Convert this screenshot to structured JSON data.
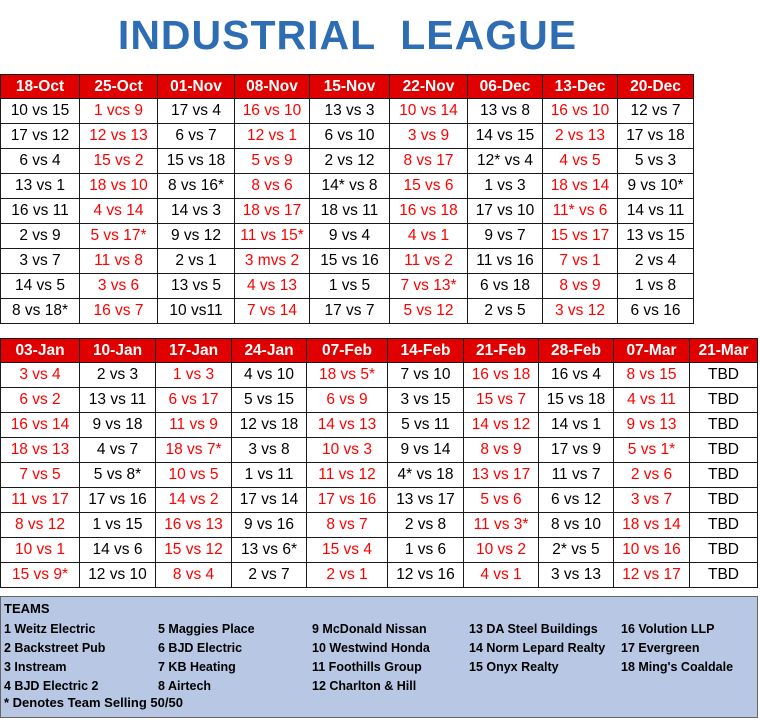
{
  "title": "INDUSTRIAL  LEAGUE",
  "table1": {
    "headers": [
      "18-Oct",
      "25-Oct",
      "01-Nov",
      "08-Nov",
      "15-Nov",
      "22-Nov",
      "06-Dec",
      "13-Dec",
      "20-Dec"
    ],
    "rows": [
      [
        "10 vs 15",
        "1 vcs 9",
        "17 vs 4",
        "16 vs 10",
        "13 vs 3",
        "10 vs 14",
        "13 vs 8",
        "16 vs 10",
        "12 vs 7"
      ],
      [
        "17 vs 12",
        "12 vs 13",
        "6 vs 7",
        "12 vs 1",
        "6 vs 10",
        "3 vs 9",
        "14 vs 15",
        "2 vs 13",
        "17 vs 18"
      ],
      [
        "6 vs 4",
        "15 vs 2",
        "15 vs 18",
        "5 vs 9",
        "2 vs 12",
        "8 vs 17",
        "12* vs 4",
        "4 vs 5",
        "5 vs 3"
      ],
      [
        "13 vs 1",
        "18 vs 10",
        "8 vs 16*",
        "8 vs 6",
        "14* vs 8",
        "15 vs 6",
        "1 vs 3",
        "18 vs 14",
        "9 vs 10*"
      ],
      [
        "16 vs 11",
        "4 vs 14",
        "14 vs 3",
        "18 vs 17",
        "18 vs 11",
        "16 vs 18",
        "17 vs 10",
        "11* vs 6",
        "14 vs 11"
      ],
      [
        "2 vs 9",
        "5 vs 17*",
        "9 vs 12",
        "11 vs 15*",
        "9 vs 4",
        "4 vs 1",
        "9 vs 7",
        "15 vs 17",
        "13 vs 15"
      ],
      [
        "3 vs 7",
        "11 vs 8",
        "2 vs 1",
        "3 mvs 2",
        "15 vs 16",
        "11 vs 2",
        "11 vs 16",
        "7 vs 1",
        "2 vs 4"
      ],
      [
        "14 vs 5",
        "3 vs 6",
        "13 vs 5",
        "4 vs 13",
        "1 vs 5",
        "7 vs 13*",
        "6 vs 18",
        "8 vs 9",
        "1 vs 8"
      ],
      [
        "8 vs 18*",
        "16 vs 7",
        "10 vs11",
        "7 vs 14",
        "17 vs 7",
        "5 vs 12",
        "2 vs 5",
        "3 vs 12",
        "6 vs 16"
      ]
    ]
  },
  "table2": {
    "headers": [
      "03-Jan",
      "10-Jan",
      "17-Jan",
      "24-Jan",
      "07-Feb",
      "14-Feb",
      "21-Feb",
      "28-Feb",
      "07-Mar",
      "21-Mar"
    ],
    "rows": [
      [
        "3 vs 4",
        "2 vs 3",
        "1 vs 3",
        "4 vs 10",
        "18 vs 5*",
        "7 vs 10",
        "16 vs 18",
        "16 vs 4",
        "8 vs 15",
        "TBD"
      ],
      [
        "6 vs 2",
        "13 vs 11",
        "6 vs 17",
        "5 vs 15",
        "6 vs 9",
        "3 vs 15",
        "15 vs 7",
        "15 vs 18",
        "4 vs 11",
        "TBD"
      ],
      [
        "16 vs 14",
        "9 vs 18",
        "11 vs 9",
        "12 vs 18",
        "14 vs 13",
        "5 vs 11",
        "14 vs 12",
        "14 vs 1",
        "9 vs 13",
        "TBD"
      ],
      [
        "18 vs 13",
        "4 vs 7",
        "18 vs 7*",
        "3 vs 8",
        "10 vs 3",
        "9 vs 14",
        "8 vs 9",
        "17 vs 9",
        "5 vs 1*",
        "TBD"
      ],
      [
        "7 vs 5",
        "5 vs 8*",
        "10 vs 5",
        "1 vs 11",
        "11 vs 12",
        "4* vs 18",
        "13 vs 17",
        "11 vs 7",
        "2 vs 6",
        "TBD"
      ],
      [
        "11 vs 17",
        "17 vs 16",
        "14 vs 2",
        "17 vs 14",
        "17 vs 16",
        "13 vs 17",
        "5 vs 6",
        "6 vs 12",
        "3 vs 7",
        "TBD"
      ],
      [
        "8 vs 12",
        "1 vs 15",
        "16 vs 13",
        "9 vs 16",
        "8 vs 7",
        "2 vs 8",
        "11 vs 3*",
        "8 vs 10",
        "18 vs 14",
        "TBD"
      ],
      [
        "10 vs 1",
        "14 vs 6",
        "15 vs 12",
        "13 vs 6*",
        "15 vs 4",
        "1 vs 6",
        "10 vs 2",
        "2* vs 5",
        "10 vs 16",
        "TBD"
      ],
      [
        "15 vs 9*",
        "12 vs 10",
        "8 vs 4",
        "2 vs 7",
        "2 vs 1",
        "12 vs 16",
        "4 vs 1",
        "3 vs 13",
        "12 vs 17",
        "TBD"
      ]
    ]
  },
  "colors": {
    "header_bg": "#e00000",
    "alt_text": "#ff0000",
    "title": "#2e6db4",
    "teams_bg": "#b8c8e4"
  },
  "teams": {
    "heading": "TEAMS",
    "list": [
      "1 Weitz Electric",
      "2 Backstreet Pub",
      "3 Instream",
      "4 BJD Electric 2",
      "5 Maggies Place",
      "6 BJD Electric",
      "7 KB Heating",
      "8 Airtech",
      "9 McDonald Nissan",
      "10 Westwind Honda",
      "11 Foothills Group",
      "12 Charlton & Hill",
      "13 DA Steel  Buildings",
      "14 Norm Lepard Realty",
      "15 Onyx Realty",
      "16 Volution LLP",
      "17 Evergreen",
      "18 Ming's Coaldale"
    ],
    "footnote": "* Denotes Team Selling 50/50"
  }
}
